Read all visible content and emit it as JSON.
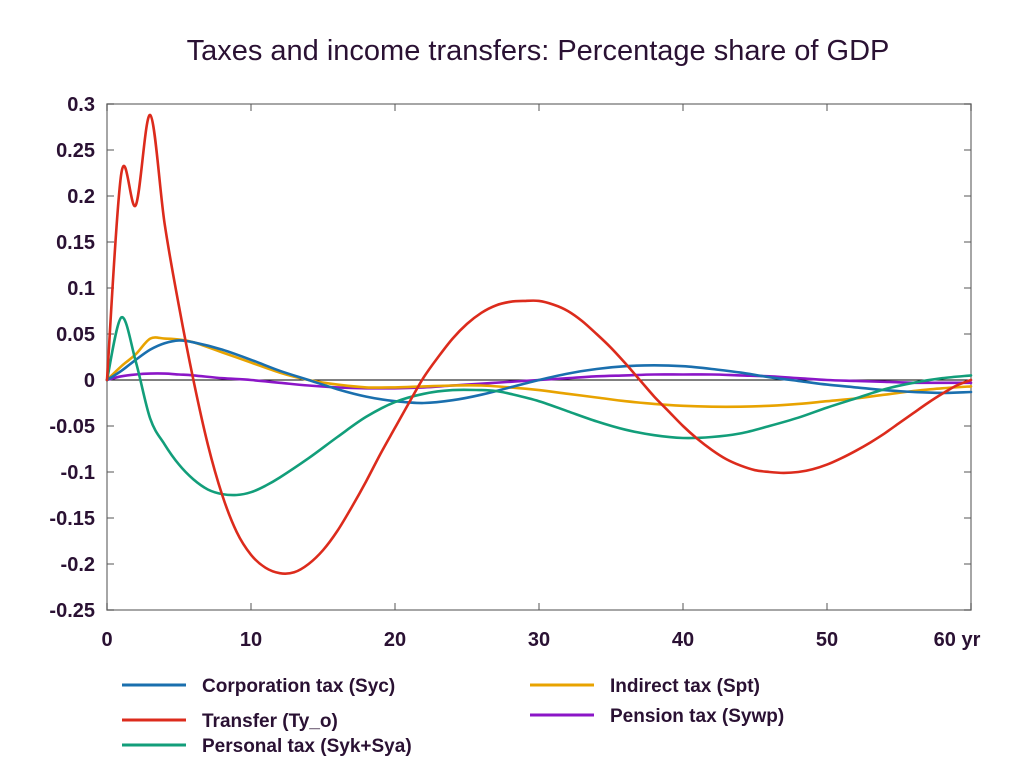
{
  "chart_data": {
    "type": "line",
    "title": "Taxes and income transfers: Percentage share of GDP",
    "xlabel": "",
    "ylabel": "",
    "xlim": [
      0,
      60
    ],
    "ylim": [
      -0.25,
      0.3
    ],
    "x_ticks": [
      0,
      10,
      20,
      30,
      40,
      50,
      60
    ],
    "x_tick_labels": [
      "0",
      "10",
      "20",
      "30",
      "40",
      "50",
      "60 yr"
    ],
    "y_ticks": [
      0.3,
      0.25,
      0.2,
      0.15,
      0.1,
      0.05,
      0,
      -0.05,
      -0.1,
      -0.15,
      -0.2,
      -0.25
    ],
    "y_tick_labels": [
      "0.3",
      "0.25",
      "0.2",
      "0.15",
      "0.1",
      "0.05",
      "0",
      "-0.05",
      "-0.1",
      "-0.15",
      "-0.2",
      "-0.25"
    ],
    "grid": false,
    "zero_line": true,
    "legend_position": "bottom",
    "series": [
      {
        "name": "Corporation tax (Syc)",
        "color": "#1a6fae",
        "x": [
          0,
          1,
          2,
          3,
          4,
          5,
          6,
          8,
          10,
          12,
          14,
          16,
          18,
          20,
          22,
          24,
          26,
          28,
          30,
          32,
          34,
          36,
          38,
          40,
          42,
          44,
          46,
          48,
          50,
          52,
          54,
          56,
          58,
          60
        ],
        "y": [
          0,
          0.01,
          0.022,
          0.033,
          0.04,
          0.043,
          0.041,
          0.033,
          0.022,
          0.01,
          0.0,
          -0.01,
          -0.018,
          -0.023,
          -0.025,
          -0.022,
          -0.016,
          -0.008,
          0.0,
          0.007,
          0.012,
          0.015,
          0.016,
          0.015,
          0.012,
          0.008,
          0.003,
          -0.001,
          -0.005,
          -0.008,
          -0.011,
          -0.013,
          -0.014,
          -0.013
        ]
      },
      {
        "name": "Indirect tax (Spt)",
        "color": "#e8a300",
        "x": [
          0,
          1,
          2,
          3,
          4,
          5,
          6,
          8,
          10,
          12,
          14,
          16,
          18,
          20,
          22,
          24,
          26,
          28,
          30,
          32,
          34,
          36,
          38,
          40,
          42,
          44,
          46,
          48,
          50,
          52,
          54,
          56,
          58,
          60
        ],
        "y": [
          0,
          0.015,
          0.028,
          0.045,
          0.045,
          0.044,
          0.041,
          0.03,
          0.019,
          0.008,
          0.0,
          -0.005,
          -0.008,
          -0.008,
          -0.007,
          -0.006,
          -0.006,
          -0.008,
          -0.011,
          -0.015,
          -0.019,
          -0.023,
          -0.026,
          -0.028,
          -0.029,
          -0.029,
          -0.028,
          -0.026,
          -0.023,
          -0.02,
          -0.016,
          -0.012,
          -0.009,
          -0.007
        ]
      },
      {
        "name": "Transfer (Ty_o)",
        "color": "#dc2b1c",
        "x": [
          0,
          1,
          2,
          3,
          4,
          5,
          6,
          7,
          8,
          9,
          10,
          11,
          12,
          13,
          14,
          15,
          16,
          17,
          18,
          19,
          20,
          21,
          22,
          23,
          24,
          25,
          26,
          27,
          28,
          29,
          30,
          31,
          32,
          33,
          34,
          35,
          36,
          37,
          38,
          39,
          40,
          41,
          42,
          43,
          44,
          45,
          46,
          47,
          48,
          49,
          50,
          51,
          52,
          53,
          54,
          55,
          56,
          57,
          58,
          59,
          60
        ],
        "y": [
          0,
          0.225,
          0.19,
          0.288,
          0.17,
          0.08,
          0.0,
          -0.07,
          -0.125,
          -0.165,
          -0.19,
          -0.204,
          -0.21,
          -0.209,
          -0.2,
          -0.185,
          -0.164,
          -0.138,
          -0.11,
          -0.08,
          -0.052,
          -0.024,
          0.003,
          0.025,
          0.045,
          0.061,
          0.073,
          0.081,
          0.085,
          0.086,
          0.086,
          0.082,
          0.075,
          0.064,
          0.05,
          0.035,
          0.018,
          0.0,
          -0.018,
          -0.034,
          -0.05,
          -0.064,
          -0.076,
          -0.086,
          -0.093,
          -0.098,
          -0.1,
          -0.101,
          -0.1,
          -0.097,
          -0.092,
          -0.085,
          -0.077,
          -0.068,
          -0.058,
          -0.047,
          -0.036,
          -0.025,
          -0.015,
          -0.006,
          0.0
        ]
      },
      {
        "name": "Pension tax (Sywp)",
        "color": "#8b16c7",
        "x": [
          0,
          1,
          2,
          3,
          4,
          5,
          6,
          8,
          10,
          12,
          14,
          16,
          18,
          20,
          22,
          24,
          26,
          28,
          30,
          32,
          34,
          36,
          38,
          40,
          42,
          44,
          46,
          48,
          50,
          52,
          54,
          56,
          58,
          60
        ],
        "y": [
          0,
          0.004,
          0.006,
          0.007,
          0.007,
          0.006,
          0.005,
          0.002,
          0.0,
          -0.003,
          -0.006,
          -0.008,
          -0.009,
          -0.009,
          -0.008,
          -0.006,
          -0.004,
          -0.002,
          0.0,
          0.002,
          0.004,
          0.005,
          0.006,
          0.006,
          0.006,
          0.005,
          0.004,
          0.002,
          0.0,
          -0.001,
          -0.002,
          -0.003,
          -0.003,
          -0.003
        ]
      },
      {
        "name": "Personal tax (Syk+Sya)",
        "color": "#129e7a",
        "x": [
          0,
          1,
          2,
          3,
          4,
          5,
          6,
          7,
          8,
          9,
          10,
          11,
          12,
          14,
          16,
          18,
          20,
          22,
          24,
          26,
          27,
          28,
          30,
          32,
          34,
          36,
          38,
          40,
          42,
          44,
          46,
          48,
          50,
          52,
          54,
          56,
          58,
          60
        ],
        "y": [
          0,
          0.068,
          0.02,
          -0.042,
          -0.07,
          -0.092,
          -0.108,
          -0.119,
          -0.124,
          -0.125,
          -0.122,
          -0.115,
          -0.106,
          -0.085,
          -0.062,
          -0.04,
          -0.024,
          -0.015,
          -0.011,
          -0.011,
          -0.012,
          -0.015,
          -0.023,
          -0.034,
          -0.045,
          -0.054,
          -0.06,
          -0.063,
          -0.062,
          -0.058,
          -0.05,
          -0.041,
          -0.03,
          -0.02,
          -0.01,
          -0.003,
          0.002,
          0.005
        ]
      }
    ]
  }
}
